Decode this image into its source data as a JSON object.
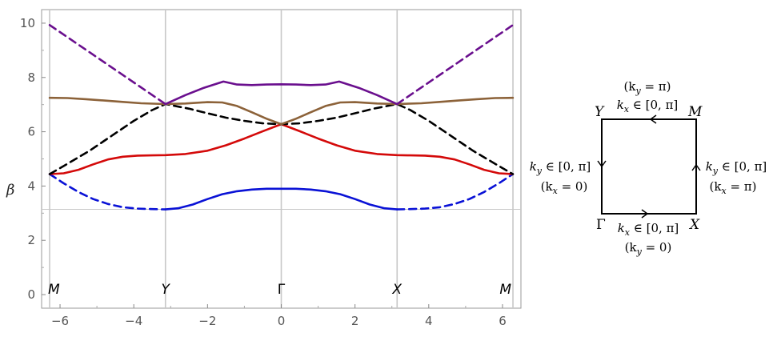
{
  "chart_data": {
    "type": "line",
    "ylabel": "β",
    "xlim": [
      -6.5,
      6.5
    ],
    "ylim": [
      -0.5,
      10.5
    ],
    "xticks": [
      "−6",
      "−4",
      "−2",
      "0",
      "2",
      "4",
      "6"
    ],
    "xtick_values": [
      -6,
      -4,
      -2,
      0,
      2,
      4,
      6
    ],
    "yticks": [
      "0",
      "2",
      "4",
      "6",
      "8",
      "10"
    ],
    "ytick_values": [
      0,
      2,
      4,
      6,
      8,
      10
    ],
    "vertical_lines": [
      -6.2832,
      -3.1416,
      0,
      3.1416,
      6.2832
    ],
    "reference_line_y": 3.1416,
    "high_symmetry_points": [
      {
        "label": "M",
        "x": -6.2832
      },
      {
        "label": "Y",
        "x": -3.1416
      },
      {
        "label": "Γ",
        "x": 0
      },
      {
        "label": "X",
        "x": 3.1416
      },
      {
        "label": "M",
        "x": 6.2832
      }
    ],
    "series": [
      {
        "color": "#0a12d6",
        "dash": false,
        "points": [
          [
            -3.14,
            3.14
          ],
          [
            -2.8,
            3.18
          ],
          [
            -2.4,
            3.32
          ],
          [
            -2.0,
            3.52
          ],
          [
            -1.6,
            3.7
          ],
          [
            -1.2,
            3.81
          ],
          [
            -0.8,
            3.87
          ],
          [
            -0.4,
            3.9
          ],
          [
            0,
            3.9
          ],
          [
            0.4,
            3.9
          ],
          [
            0.8,
            3.87
          ],
          [
            1.2,
            3.81
          ],
          [
            1.6,
            3.7
          ],
          [
            2.0,
            3.52
          ],
          [
            2.4,
            3.32
          ],
          [
            2.8,
            3.18
          ],
          [
            3.14,
            3.14
          ]
        ]
      },
      {
        "color": "#0a12d6",
        "dash": true,
        "points": [
          [
            -6.28,
            4.44
          ],
          [
            -5.9,
            4.1
          ],
          [
            -5.5,
            3.78
          ],
          [
            -5.1,
            3.52
          ],
          [
            -4.7,
            3.34
          ],
          [
            -4.3,
            3.22
          ],
          [
            -3.9,
            3.17
          ],
          [
            -3.5,
            3.15
          ],
          [
            -3.14,
            3.14
          ]
        ]
      },
      {
        "color": "#0a12d6",
        "dash": true,
        "points": [
          [
            3.14,
            3.14
          ],
          [
            3.5,
            3.15
          ],
          [
            3.9,
            3.17
          ],
          [
            4.3,
            3.22
          ],
          [
            4.7,
            3.34
          ],
          [
            5.1,
            3.52
          ],
          [
            5.5,
            3.78
          ],
          [
            5.9,
            4.1
          ],
          [
            6.28,
            4.44
          ]
        ]
      },
      {
        "color": "#d40a0a",
        "dash": false,
        "points": [
          [
            -6.28,
            4.44
          ],
          [
            -5.9,
            4.47
          ],
          [
            -5.5,
            4.6
          ],
          [
            -5.1,
            4.8
          ],
          [
            -4.7,
            4.98
          ],
          [
            -4.3,
            5.08
          ],
          [
            -3.9,
            5.12
          ],
          [
            -3.5,
            5.13
          ],
          [
            -3.14,
            5.14
          ],
          [
            -2.6,
            5.18
          ],
          [
            -2.0,
            5.3
          ],
          [
            -1.5,
            5.5
          ],
          [
            -1.0,
            5.75
          ],
          [
            -0.5,
            6.02
          ],
          [
            0,
            6.28
          ],
          [
            0.5,
            6.02
          ],
          [
            1.0,
            5.75
          ],
          [
            1.5,
            5.5
          ],
          [
            2.0,
            5.3
          ],
          [
            2.6,
            5.18
          ],
          [
            3.14,
            5.14
          ],
          [
            3.5,
            5.13
          ],
          [
            3.9,
            5.12
          ],
          [
            4.3,
            5.08
          ],
          [
            4.7,
            4.98
          ],
          [
            5.1,
            4.8
          ],
          [
            5.5,
            4.6
          ],
          [
            5.9,
            4.47
          ],
          [
            6.28,
            4.44
          ]
        ]
      },
      {
        "color": "#000000",
        "dash": true,
        "points": [
          [
            -6.28,
            4.44
          ],
          [
            -5.8,
            4.82
          ],
          [
            -5.2,
            5.3
          ],
          [
            -4.6,
            5.85
          ],
          [
            -4.0,
            6.4
          ],
          [
            -3.5,
            6.8
          ],
          [
            -3.14,
            7.02
          ],
          [
            -2.5,
            6.85
          ],
          [
            -2.0,
            6.68
          ],
          [
            -1.5,
            6.52
          ],
          [
            -1.0,
            6.4
          ],
          [
            -0.5,
            6.31
          ],
          [
            0,
            6.28
          ],
          [
            0.5,
            6.31
          ],
          [
            1.0,
            6.4
          ],
          [
            1.5,
            6.52
          ],
          [
            2.0,
            6.68
          ],
          [
            2.5,
            6.85
          ],
          [
            3.14,
            7.02
          ],
          [
            3.5,
            6.8
          ],
          [
            4.0,
            6.4
          ],
          [
            4.6,
            5.85
          ],
          [
            5.2,
            5.3
          ],
          [
            5.8,
            4.82
          ],
          [
            6.28,
            4.44
          ]
        ]
      },
      {
        "color": "#8c6239",
        "dash": false,
        "points": [
          [
            -6.28,
            7.25
          ],
          [
            -5.8,
            7.24
          ],
          [
            -5.3,
            7.2
          ],
          [
            -4.8,
            7.15
          ],
          [
            -4.3,
            7.1
          ],
          [
            -3.8,
            7.05
          ],
          [
            -3.14,
            7.02
          ],
          [
            -2.6,
            7.04
          ],
          [
            -2.0,
            7.09
          ],
          [
            -1.6,
            7.08
          ],
          [
            -1.2,
            6.95
          ],
          [
            -0.8,
            6.72
          ],
          [
            -0.4,
            6.48
          ],
          [
            0,
            6.28
          ],
          [
            0.4,
            6.48
          ],
          [
            0.8,
            6.72
          ],
          [
            1.2,
            6.95
          ],
          [
            1.6,
            7.08
          ],
          [
            2.0,
            7.09
          ],
          [
            2.6,
            7.04
          ],
          [
            3.14,
            7.02
          ],
          [
            3.8,
            7.05
          ],
          [
            4.3,
            7.1
          ],
          [
            4.8,
            7.15
          ],
          [
            5.3,
            7.2
          ],
          [
            5.8,
            7.24
          ],
          [
            6.28,
            7.25
          ]
        ]
      },
      {
        "color": "#6a0f8e",
        "dash": false,
        "points": [
          [
            -3.14,
            7.02
          ],
          [
            -2.6,
            7.35
          ],
          [
            -2.1,
            7.62
          ],
          [
            -1.57,
            7.85
          ],
          [
            -1.2,
            7.74
          ],
          [
            -0.8,
            7.72
          ],
          [
            -0.4,
            7.74
          ],
          [
            0,
            7.75
          ],
          [
            0.4,
            7.74
          ],
          [
            0.8,
            7.72
          ],
          [
            1.2,
            7.74
          ],
          [
            1.57,
            7.85
          ],
          [
            2.1,
            7.62
          ],
          [
            2.6,
            7.35
          ],
          [
            3.14,
            7.02
          ]
        ]
      },
      {
        "color": "#6a0f8e",
        "dash": true,
        "points": [
          [
            -6.28,
            9.93
          ],
          [
            -3.14,
            7.02
          ]
        ]
      },
      {
        "color": "#6a0f8e",
        "dash": true,
        "points": [
          [
            3.14,
            7.02
          ],
          [
            6.28,
            9.93
          ]
        ]
      }
    ]
  },
  "bz_diagram": {
    "corner_Y": "Y",
    "corner_M": "M",
    "corner_Gamma": "Γ",
    "corner_X": "X",
    "top_line1": "(k",
    "top_line1_sub": "y",
    "top_line1_rest": " = π)",
    "top_line2": "k",
    "top_line2_sub": "x",
    "top_line2_rest": " ∈ [0, π]",
    "left_line1": "k",
    "left_line1_sub": "y",
    "left_line1_rest": " ∈ [0, π]",
    "left_line2": "(k",
    "left_line2_sub": "x",
    "left_line2_rest": " = 0)",
    "right_line1": "k",
    "right_line1_sub": "y",
    "right_line1_rest": " ∈ [0, π]",
    "right_line2": "(k",
    "right_line2_sub": "x",
    "right_line2_rest": " = π)",
    "bottom_line1": "k",
    "bottom_line1_sub": "x",
    "bottom_line1_rest": " ∈ [0, π]",
    "bottom_line2": "(k",
    "bottom_line2_sub": "y",
    "bottom_line2_rest": " = 0)"
  }
}
